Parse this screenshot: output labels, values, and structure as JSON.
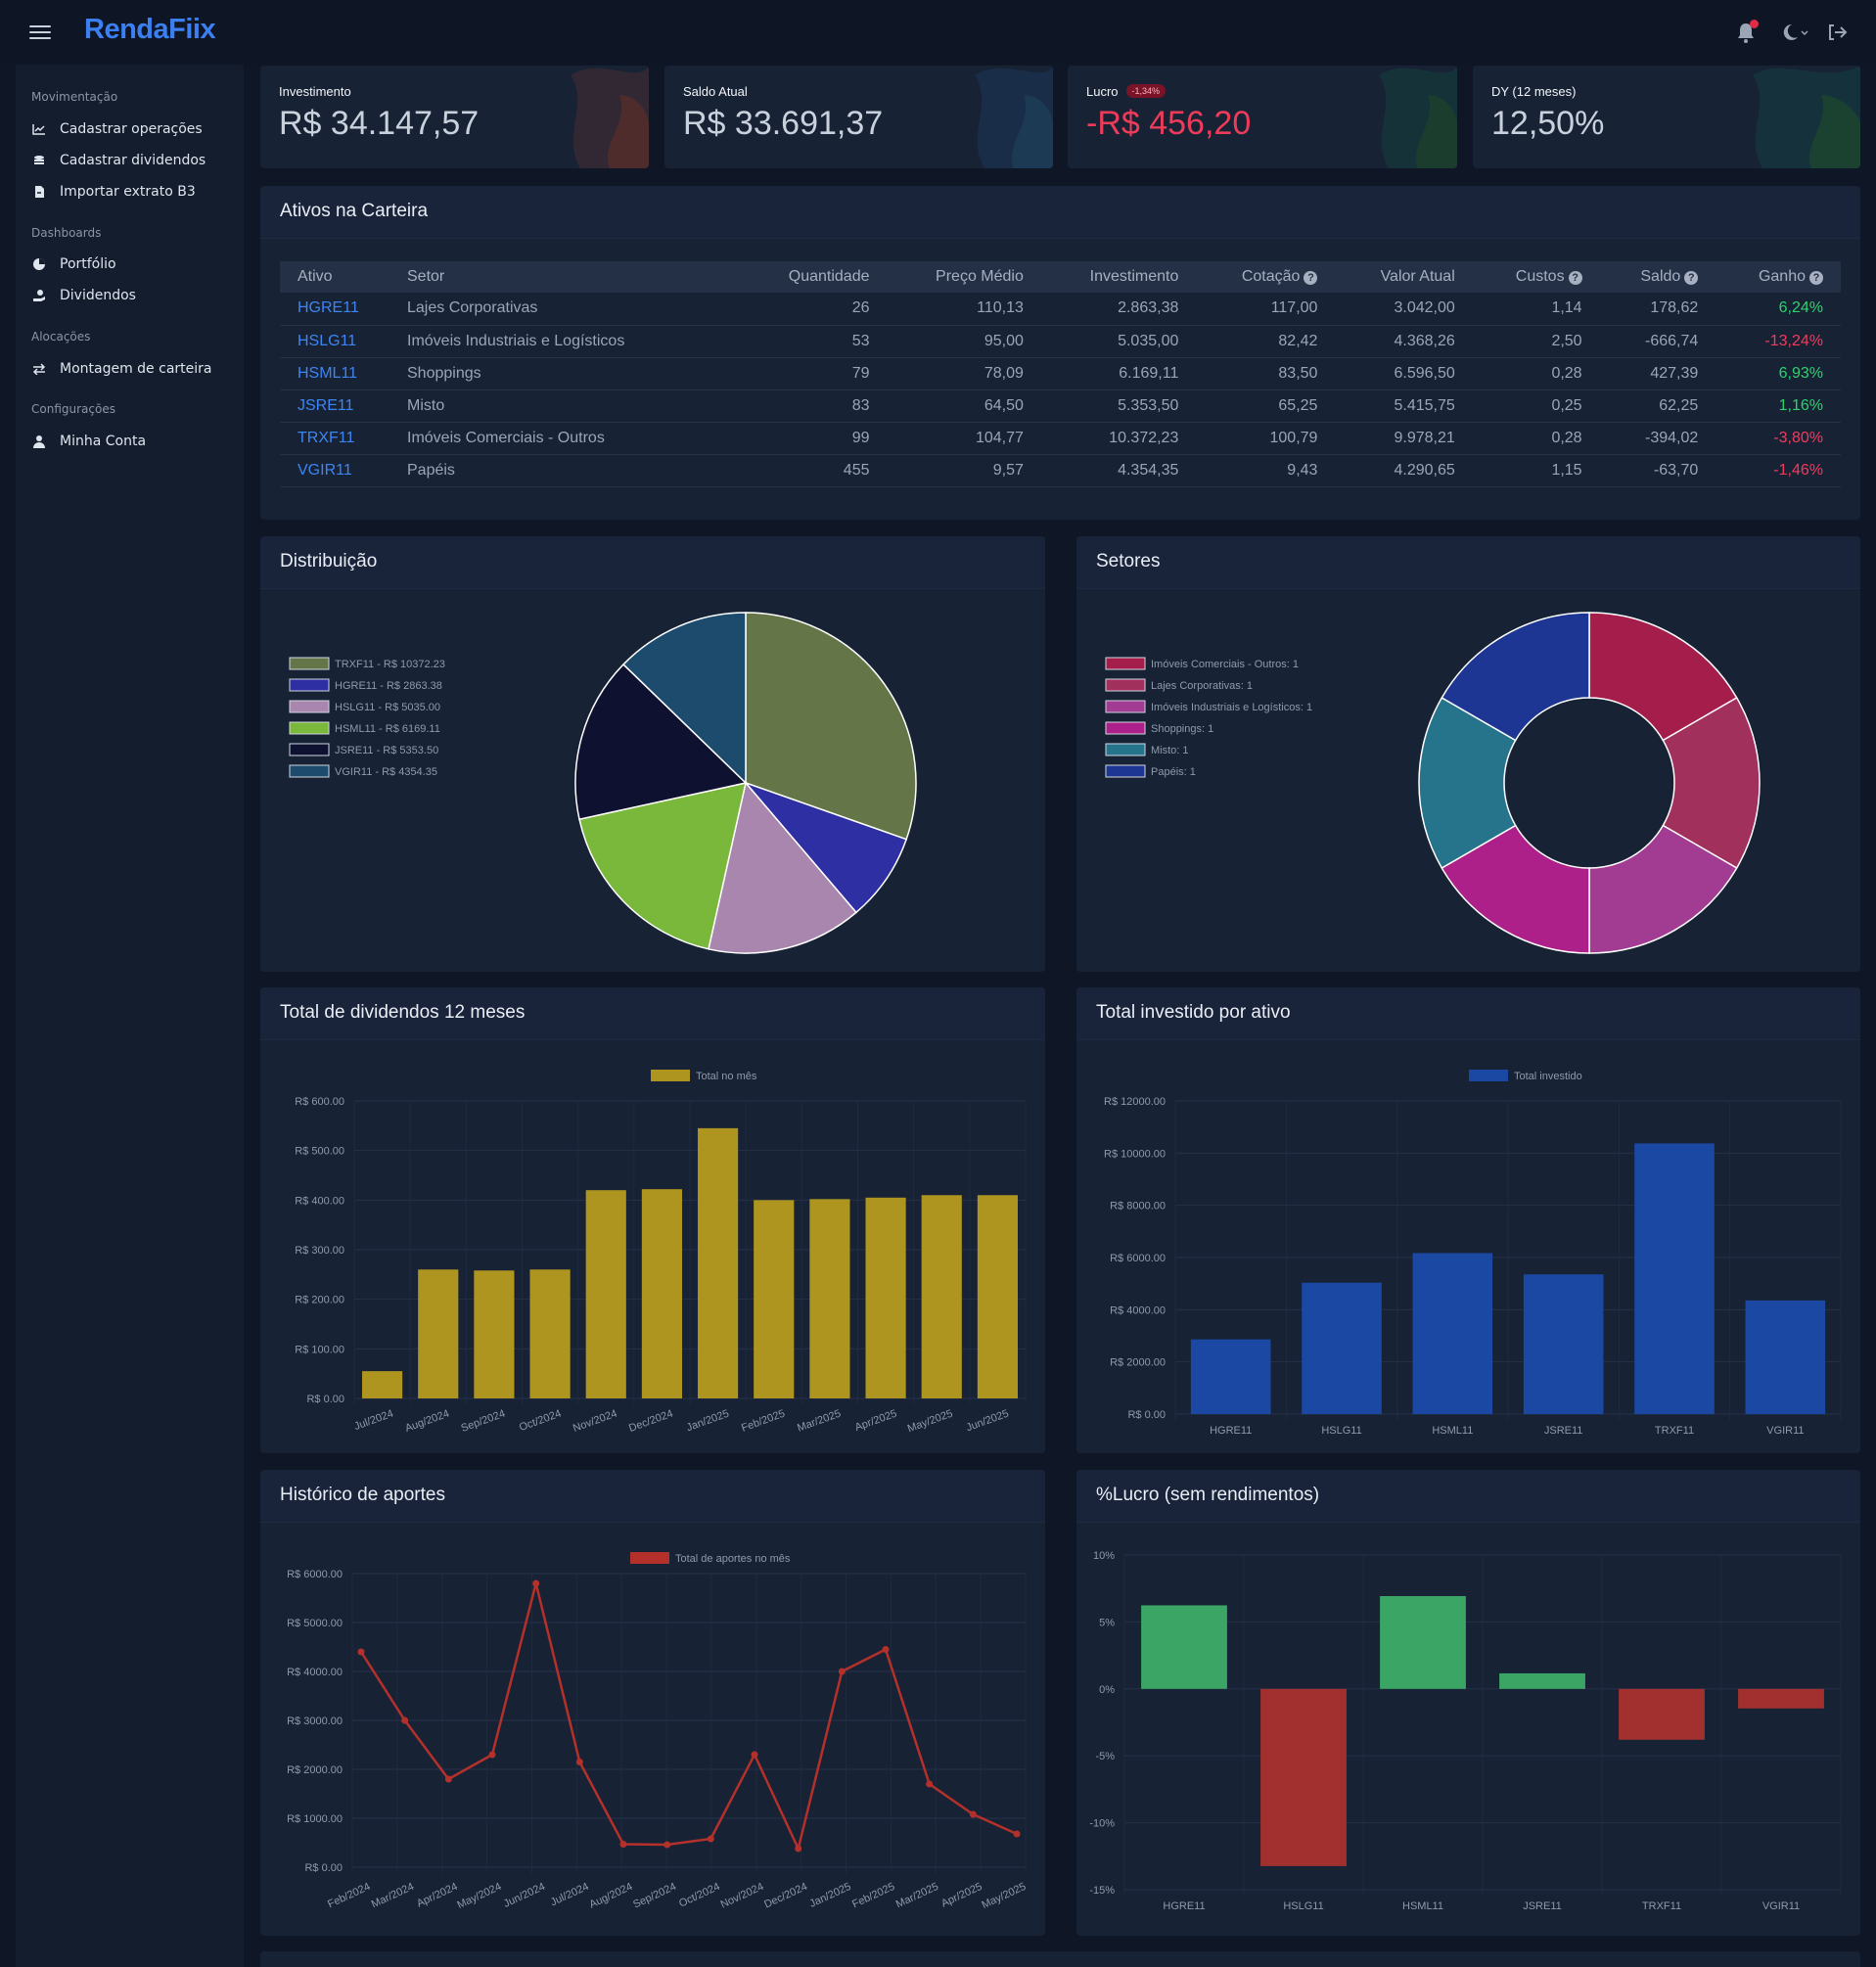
{
  "app": {
    "brand": "RendaFiix"
  },
  "colors": {
    "accent": "#3b7ff0",
    "positive": "#2fd16e",
    "negative": "#f23b5c"
  },
  "sidebar": {
    "sections": [
      {
        "title": "Movimentação",
        "items": [
          {
            "label": "Cadastrar operações",
            "icon": "chart-line-icon"
          },
          {
            "label": "Cadastrar dividendos",
            "icon": "coins-icon"
          },
          {
            "label": "Importar extrato B3",
            "icon": "file-import-icon"
          }
        ]
      },
      {
        "title": "Dashboards",
        "items": [
          {
            "label": "Portfólio",
            "icon": "pie-chart-icon"
          },
          {
            "label": "Dividendos",
            "icon": "hand-holding-dollar-icon"
          }
        ]
      },
      {
        "title": "Alocações",
        "items": [
          {
            "label": "Montagem de carteira",
            "icon": "arrows-exchange-icon"
          }
        ]
      },
      {
        "title": "Configurações",
        "items": [
          {
            "label": "Minha Conta",
            "icon": "user-icon"
          }
        ]
      }
    ]
  },
  "stats": [
    {
      "label": "Investimento",
      "value": "R$ 34.147,57"
    },
    {
      "label": "Saldo Atual",
      "value": "R$ 33.691,37"
    },
    {
      "label": "Lucro",
      "value": "-R$ 456,20",
      "pill": "-1,34%"
    },
    {
      "label": "DY (12 meses)",
      "value": "12,50%"
    }
  ],
  "table": {
    "title": "Ativos na Carteira",
    "headers": [
      "Ativo",
      "Setor",
      "Quantidade",
      "Preço Médio",
      "Investimento",
      "Cotação",
      "Valor Atual",
      "Custos",
      "Saldo",
      "Ganho"
    ],
    "rows": [
      [
        "HGRE11",
        "Lajes Corporativas",
        "26",
        "110,13",
        "2.863,38",
        "117,00",
        "3.042,00",
        "1,14",
        "178,62",
        "6,24%"
      ],
      [
        "HSLG11",
        "Imóveis Industriais e Logísticos",
        "53",
        "95,00",
        "5.035,00",
        "82,42",
        "4.368,26",
        "2,50",
        "-666,74",
        "-13,24%"
      ],
      [
        "HSML11",
        "Shoppings",
        "79",
        "78,09",
        "6.169,11",
        "83,50",
        "6.596,50",
        "0,28",
        "427,39",
        "6,93%"
      ],
      [
        "JSRE11",
        "Misto",
        "83",
        "64,50",
        "5.353,50",
        "65,25",
        "5.415,75",
        "0,25",
        "62,25",
        "1,16%"
      ],
      [
        "TRXF11",
        "Imóveis Comerciais - Outros",
        "99",
        "104,77",
        "10.372,23",
        "100,79",
        "9.978,21",
        "0,28",
        "-394,02",
        "-3,80%"
      ],
      [
        "VGIR11",
        "Papéis",
        "455",
        "9,57",
        "4.354,35",
        "9,43",
        "4.290,65",
        "1,15",
        "-63,70",
        "-1,46%"
      ]
    ]
  },
  "chart_data": [
    {
      "id": "distribuicao",
      "type": "pie",
      "title": "Distribuição",
      "labels": [
        "TRXF11 - R$ 10372.23",
        "HGRE11 - R$ 2863.38",
        "HSLG11 - R$ 5035.00",
        "HSML11 - R$ 6169.11",
        "JSRE11 - R$ 5353.50",
        "VGIR11 - R$ 4354.35"
      ],
      "values": [
        10372.23,
        2863.38,
        5035.0,
        6169.11,
        5353.5,
        4354.35
      ],
      "colors": [
        "#647647",
        "#2e2fa3",
        "#a986ae",
        "#7ab83b",
        "#0f1131",
        "#1c4b6e"
      ]
    },
    {
      "id": "setores",
      "type": "doughnut",
      "title": "Setores",
      "labels": [
        "Imóveis Comerciais - Outros: 1",
        "Lajes Corporativas: 1",
        "Imóveis Industriais e Logísticos: 1",
        "Shoppings: 1",
        "Misto: 1",
        "Papéis: 1"
      ],
      "values": [
        1,
        1,
        1,
        1,
        1,
        1
      ],
      "colors": [
        "#a51e4b",
        "#a2305c",
        "#a23b92",
        "#ad2089",
        "#25748c",
        "#1e3693"
      ]
    },
    {
      "id": "dividendos",
      "type": "bar",
      "title": "Total de dividendos 12 meses",
      "legend": "Total no mês",
      "color": "#ae951f",
      "categories": [
        "Jul/2024",
        "Aug/2024",
        "Sep/2024",
        "Oct/2024",
        "Nov/2024",
        "Dec/2024",
        "Jan/2025",
        "Feb/2025",
        "Mar/2025",
        "Apr/2025",
        "May/2025",
        "Jun/2025"
      ],
      "values": [
        55,
        260,
        258,
        260,
        420,
        422,
        545,
        400,
        402,
        405,
        410,
        410
      ],
      "ylim": [
        0,
        600
      ],
      "yticks": [
        0,
        100,
        200,
        300,
        400,
        500,
        600
      ],
      "tick_labels": [
        "R$ 0.00",
        "R$ 100.00",
        "R$ 200.00",
        "R$ 300.00",
        "R$ 400.00",
        "R$ 500.00",
        "R$ 600.00"
      ]
    },
    {
      "id": "investido",
      "type": "bar",
      "title": "Total investido por ativo",
      "legend": "Total investido",
      "color": "#1b48a3",
      "categories": [
        "HGRE11",
        "HSLG11",
        "HSML11",
        "JSRE11",
        "TRXF11",
        "VGIR11"
      ],
      "values": [
        2863.38,
        5035.0,
        6169.11,
        5353.5,
        10372.23,
        4354.35
      ],
      "ylim": [
        0,
        12000
      ],
      "yticks": [
        0,
        2000,
        4000,
        6000,
        8000,
        10000,
        12000
      ],
      "tick_labels": [
        "R$ 0.00",
        "R$ 2000.00",
        "R$ 4000.00",
        "R$ 6000.00",
        "R$ 8000.00",
        "R$ 10000.00",
        "R$ 12000.00"
      ]
    },
    {
      "id": "aportes",
      "type": "line",
      "title": "Histórico de aportes",
      "legend": "Total de aportes no mês",
      "color": "#b4302a",
      "categories": [
        "Feb/2024",
        "Mar/2024",
        "Apr/2024",
        "May/2024",
        "Jun/2024",
        "Jul/2024",
        "Aug/2024",
        "Sep/2024",
        "Oct/2024",
        "Nov/2024",
        "Dec/2024",
        "Jan/2025",
        "Feb/2025",
        "Mar/2025",
        "Apr/2025",
        "May/2025"
      ],
      "values": [
        4400,
        3000,
        1800,
        2300,
        5800,
        2150,
        470,
        460,
        580,
        2300,
        380,
        4000,
        4450,
        1700,
        1080,
        680
      ],
      "ylim": [
        0,
        6000
      ],
      "yticks": [
        0,
        1000,
        2000,
        3000,
        4000,
        5000,
        6000
      ],
      "tick_labels": [
        "R$ 0.00",
        "R$ 1000.00",
        "R$ 2000.00",
        "R$ 3000.00",
        "R$ 4000.00",
        "R$ 5000.00",
        "R$ 6000.00"
      ]
    },
    {
      "id": "lucro",
      "type": "bar",
      "title": "%Lucro (sem rendimentos)",
      "pos_color": "#3aa564",
      "neg_color": "#a1302f",
      "categories": [
        "HGRE11",
        "HSLG11",
        "HSML11",
        "JSRE11",
        "TRXF11",
        "VGIR11"
      ],
      "values": [
        6.24,
        -13.24,
        6.93,
        1.16,
        -3.8,
        -1.46
      ],
      "ylim": [
        -15,
        10
      ],
      "yticks": [
        -15,
        -10,
        -5,
        0,
        5,
        10
      ],
      "tick_labels": [
        "-15%",
        "-10%",
        "-5%",
        "0%",
        "5%",
        "10%"
      ]
    }
  ]
}
